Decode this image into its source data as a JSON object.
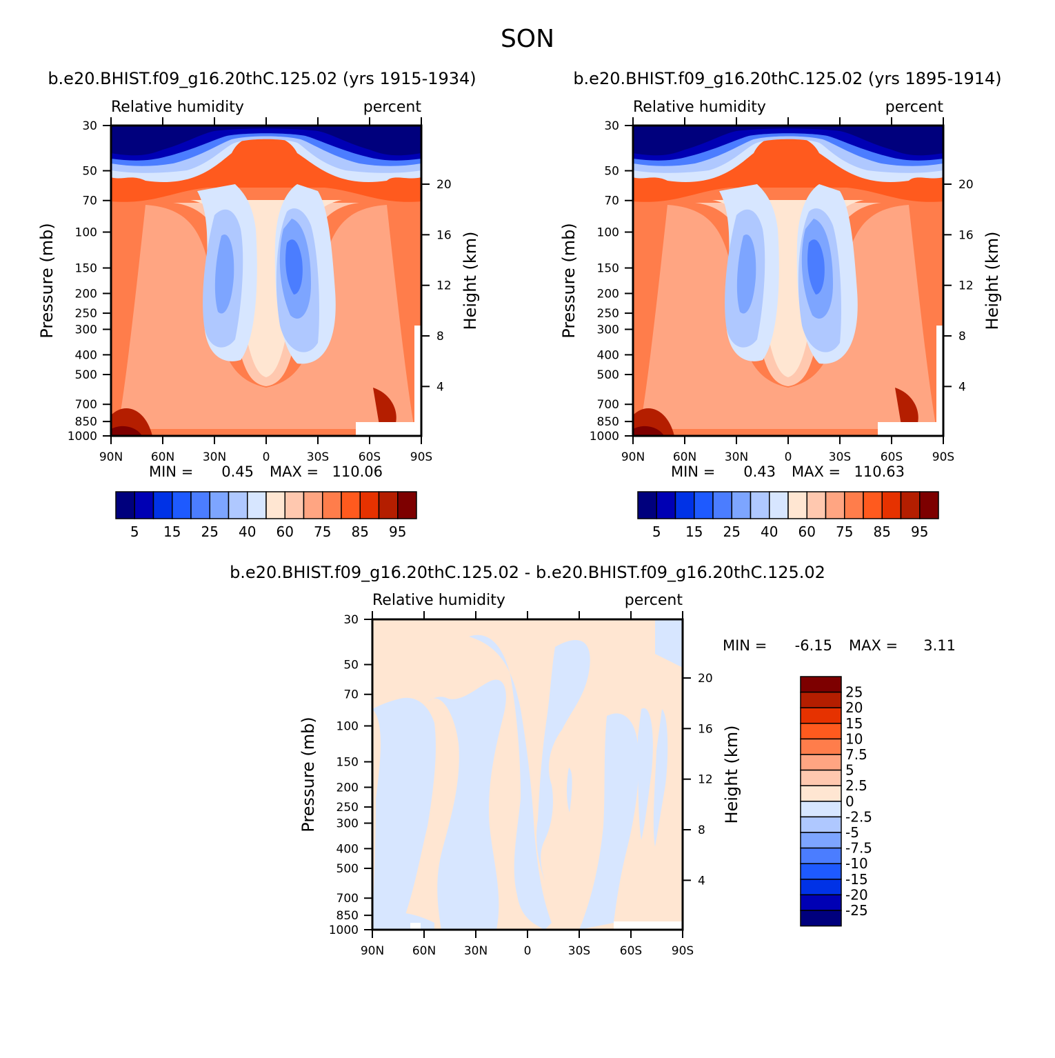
{
  "page_title": "SON",
  "panels": [
    {
      "title": "b.e20.BHIST.f09_g16.20thC.125.02 (yrs 1915-1934)",
      "left_label": "Relative humidity",
      "right_label": "percent",
      "min_label": "MIN =",
      "min_value": "0.45",
      "max_label": "MAX =",
      "max_value": "110.06"
    },
    {
      "title": "b.e20.BHIST.f09_g16.20thC.125.02 (yrs 1895-1914)",
      "left_label": "Relative humidity",
      "right_label": "percent",
      "min_label": "MIN =",
      "min_value": "0.43",
      "max_label": "MAX =",
      "max_value": "110.63"
    },
    {
      "title": "b.e20.BHIST.f09_g16.20thC.125.02 - b.e20.BHIST.f09_g16.20thC.125.02",
      "left_label": "Relative humidity",
      "right_label": "percent",
      "min_label": "MIN =",
      "min_value": "-6.15",
      "max_label": "MAX =",
      "max_value": "3.11"
    }
  ],
  "axis_labels": {
    "ylabel": "Pressure (mb)",
    "y2label": "Height (km)"
  },
  "chart_data": {
    "type": "heatmap",
    "x_ticks": [
      "90N",
      "60N",
      "30N",
      "0",
      "30S",
      "60S",
      "90S"
    ],
    "y_ticks": [
      "30",
      "50",
      "70",
      "100",
      "150",
      "200",
      "250",
      "300",
      "400",
      "500",
      "700",
      "850",
      "1000"
    ],
    "y2_ticks": [
      "20",
      "16",
      "12",
      "8",
      "4"
    ],
    "y_log_scale": true,
    "xlim": [
      90,
      -90
    ],
    "ylim": [
      1000,
      30
    ],
    "colorbar_abs": {
      "labels": [
        "5",
        "15",
        "25",
        "40",
        "60",
        "75",
        "85",
        "95"
      ],
      "colors": [
        "#00007d",
        "#0000b4",
        "#0032e6",
        "#1e5aff",
        "#4b7dff",
        "#7da5ff",
        "#afc8ff",
        "#d7e6ff",
        "#ffe6d2",
        "#ffc8af",
        "#ffa582",
        "#ff7d4b",
        "#ff5a1e",
        "#e63200",
        "#b41e00",
        "#7d0000"
      ]
    },
    "colorbar_diff": {
      "labels": [
        "25",
        "20",
        "15",
        "10",
        "7.5",
        "5",
        "2.5",
        "0",
        "-2.5",
        "-5",
        "-7.5",
        "-10",
        "-15",
        "-20",
        "-25"
      ],
      "colors": [
        "#7d0000",
        "#b41e00",
        "#e63200",
        "#ff5a1e",
        "#ff7d4b",
        "#ffa582",
        "#ffc8af",
        "#ffe6d2",
        "#d7e6ff",
        "#afc8ff",
        "#7da5ff",
        "#4b7dff",
        "#1e5aff",
        "#0032e6",
        "#0000b4",
        "#00007d"
      ]
    }
  }
}
